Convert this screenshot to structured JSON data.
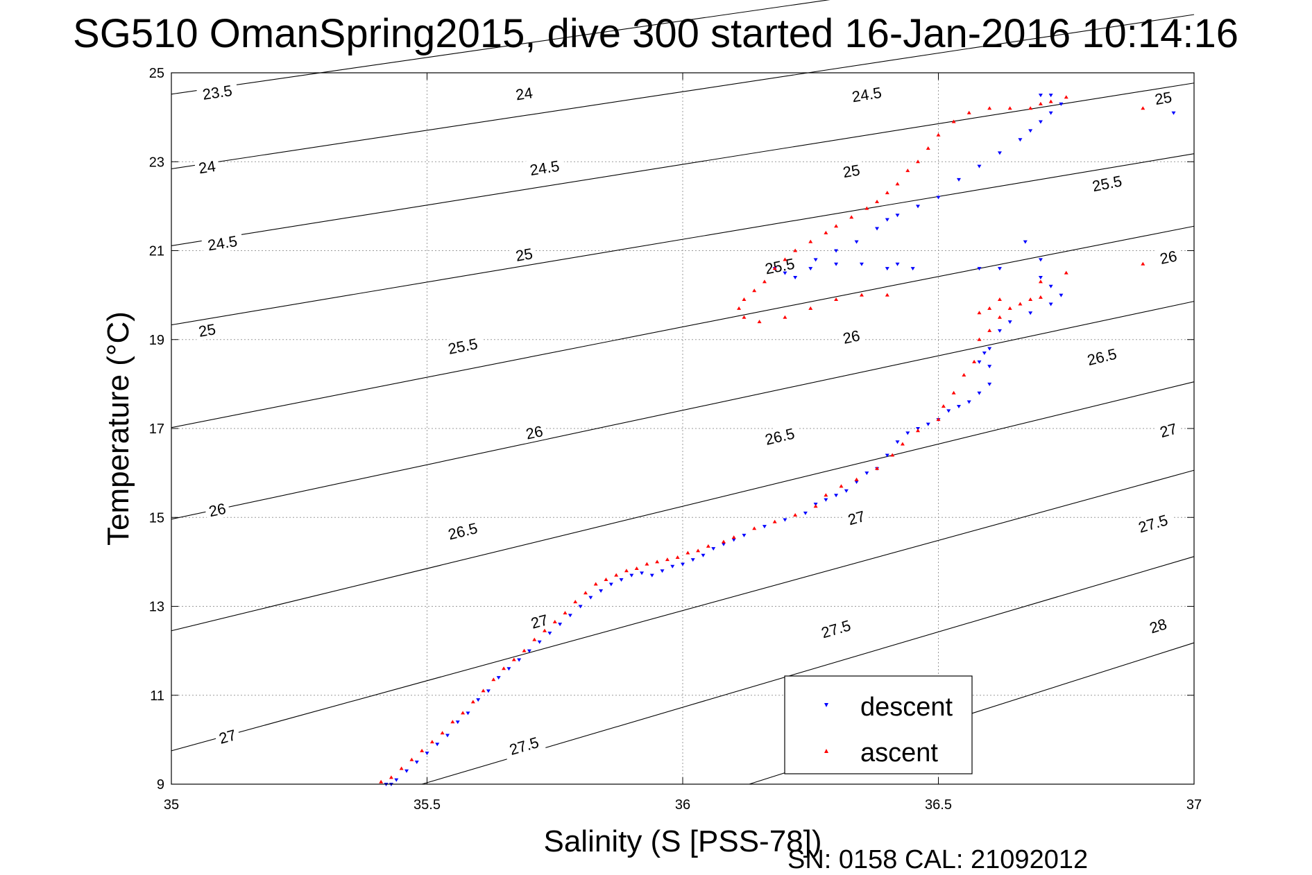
{
  "chart_data": {
    "type": "scatter",
    "title": "SG510 OmanSpring2015, dive 300 started 16-Jan-2016 10:14:16",
    "xlabel": "Salinity (S [PSS-78])",
    "ylabel": "Temperature (°C)",
    "xlim": [
      35,
      37
    ],
    "ylim": [
      9,
      25
    ],
    "x_ticks": [
      35,
      35.5,
      36,
      36.5,
      37
    ],
    "x_tick_labels": [
      "35",
      "35.5",
      "36",
      "36.5",
      "37"
    ],
    "y_ticks": [
      9,
      11,
      13,
      15,
      17,
      19,
      21,
      23,
      25
    ],
    "y_tick_labels": [
      "9",
      "11",
      "13",
      "15",
      "17",
      "19",
      "21",
      "23",
      "25"
    ],
    "grid": true,
    "legend_position": "bottom-right",
    "footer_note": "SN: 0158  CAL: 21092012",
    "colors": {
      "descent": "#0000ff",
      "ascent": "#ff0000",
      "contour": "#000000",
      "grid": "#9a9a9a"
    },
    "contours": [
      {
        "level": 23.5,
        "label": "23.5",
        "line": [
          [
            35,
            24.52
          ],
          [
            37,
            27.82
          ]
        ],
        "labels": [
          [
            35.09,
            24.55
          ]
        ]
      },
      {
        "level": 24,
        "label": "24",
        "line": [
          [
            35,
            22.84
          ],
          [
            37,
            26.31
          ]
        ],
        "labels": [
          [
            35.07,
            22.87
          ],
          [
            35.69,
            24.52
          ]
        ]
      },
      {
        "level": 24.5,
        "label": "24.5",
        "line": [
          [
            35,
            21.11
          ],
          [
            37,
            24.77
          ]
        ],
        "labels": [
          [
            35.1,
            21.16
          ],
          [
            35.73,
            22.85
          ],
          [
            36.36,
            24.5
          ]
        ]
      },
      {
        "level": 25,
        "label": "25",
        "line": [
          [
            35,
            19.33
          ],
          [
            37,
            23.18
          ]
        ],
        "labels": [
          [
            35.07,
            19.2
          ],
          [
            35.69,
            20.9
          ],
          [
            36.33,
            22.78
          ],
          [
            36.94,
            24.42
          ]
        ]
      },
      {
        "level": 25.5,
        "label": "25.5",
        "line": [
          [
            35,
            17.02
          ],
          [
            37,
            21.55
          ]
        ],
        "labels": [
          [
            35.57,
            18.84
          ],
          [
            36.19,
            20.64
          ],
          [
            36.83,
            22.5
          ]
        ]
      },
      {
        "level": 26,
        "label": "26",
        "line": [
          [
            35,
            14.96
          ],
          [
            37,
            19.86
          ]
        ],
        "labels": [
          [
            35.09,
            15.16
          ],
          [
            35.71,
            16.9
          ],
          [
            36.33,
            19.05
          ],
          [
            36.95,
            20.84
          ]
        ]
      },
      {
        "level": 26.5,
        "label": "26.5",
        "line": [
          [
            35,
            12.45
          ],
          [
            37,
            18.05
          ]
        ],
        "labels": [
          [
            35.57,
            14.68
          ],
          [
            36.19,
            16.81
          ],
          [
            36.82,
            18.6
          ]
        ]
      },
      {
        "level": 27,
        "label": "27",
        "line": [
          [
            35,
            9.75
          ],
          [
            37,
            16.06
          ]
        ],
        "labels": [
          [
            35.11,
            10.06
          ],
          [
            35.72,
            12.65
          ],
          [
            36.34,
            14.98
          ],
          [
            36.95,
            16.95
          ]
        ]
      },
      {
        "level": 27.5,
        "label": "27.5",
        "line": [
          [
            35.49,
            9
          ],
          [
            37,
            14.12
          ]
        ],
        "labels": [
          [
            35.69,
            9.85
          ],
          [
            36.3,
            12.48
          ],
          [
            36.92,
            14.85
          ]
        ]
      },
      {
        "level": 28,
        "label": "28",
        "line": [
          [
            36.13,
            9
          ],
          [
            37,
            12.18
          ]
        ],
        "labels": [
          [
            36.93,
            12.55
          ]
        ]
      }
    ],
    "series": [
      {
        "name": "descent",
        "marker": "triangle-down",
        "points": [
          [
            35.42,
            9.0
          ],
          [
            35.43,
            9.0
          ],
          [
            35.44,
            9.1
          ],
          [
            35.46,
            9.3
          ],
          [
            35.48,
            9.5
          ],
          [
            35.5,
            9.7
          ],
          [
            35.52,
            9.9
          ],
          [
            35.54,
            10.1
          ],
          [
            35.56,
            10.4
          ],
          [
            35.58,
            10.6
          ],
          [
            35.6,
            10.9
          ],
          [
            35.62,
            11.1
          ],
          [
            35.64,
            11.4
          ],
          [
            35.66,
            11.6
          ],
          [
            35.68,
            11.8
          ],
          [
            35.7,
            12.0
          ],
          [
            35.72,
            12.2
          ],
          [
            35.74,
            12.4
          ],
          [
            35.76,
            12.6
          ],
          [
            35.78,
            12.8
          ],
          [
            35.8,
            13.0
          ],
          [
            35.82,
            13.2
          ],
          [
            35.84,
            13.35
          ],
          [
            35.86,
            13.5
          ],
          [
            35.88,
            13.6
          ],
          [
            35.9,
            13.7
          ],
          [
            35.92,
            13.75
          ],
          [
            35.94,
            13.7
          ],
          [
            35.96,
            13.8
          ],
          [
            35.98,
            13.9
          ],
          [
            36.0,
            13.95
          ],
          [
            36.02,
            14.05
          ],
          [
            36.04,
            14.15
          ],
          [
            36.06,
            14.3
          ],
          [
            36.08,
            14.4
          ],
          [
            36.1,
            14.5
          ],
          [
            36.12,
            14.6
          ],
          [
            36.16,
            14.8
          ],
          [
            36.2,
            14.95
          ],
          [
            36.24,
            15.1
          ],
          [
            36.26,
            15.3
          ],
          [
            36.28,
            15.4
          ],
          [
            36.3,
            15.5
          ],
          [
            36.32,
            15.6
          ],
          [
            36.34,
            15.8
          ],
          [
            36.36,
            16.0
          ],
          [
            36.38,
            16.1
          ],
          [
            36.4,
            16.4
          ],
          [
            36.42,
            16.7
          ],
          [
            36.44,
            16.9
          ],
          [
            36.46,
            17.0
          ],
          [
            36.48,
            17.1
          ],
          [
            36.5,
            17.2
          ],
          [
            36.52,
            17.4
          ],
          [
            36.54,
            17.5
          ],
          [
            36.56,
            17.6
          ],
          [
            36.58,
            17.8
          ],
          [
            36.6,
            18.0
          ],
          [
            36.6,
            18.4
          ],
          [
            36.58,
            18.5
          ],
          [
            36.59,
            18.7
          ],
          [
            36.6,
            18.8
          ],
          [
            36.62,
            19.2
          ],
          [
            36.64,
            19.4
          ],
          [
            36.68,
            19.6
          ],
          [
            36.72,
            19.8
          ],
          [
            36.74,
            20.0
          ],
          [
            36.72,
            20.2
          ],
          [
            36.7,
            20.4
          ],
          [
            36.67,
            21.2
          ],
          [
            36.7,
            20.8
          ],
          [
            36.62,
            20.6
          ],
          [
            36.58,
            20.6
          ],
          [
            36.45,
            20.6
          ],
          [
            36.42,
            20.7
          ],
          [
            36.4,
            20.6
          ],
          [
            36.35,
            20.7
          ],
          [
            36.3,
            20.7
          ],
          [
            36.25,
            20.6
          ],
          [
            36.2,
            20.5
          ],
          [
            36.18,
            20.6
          ],
          [
            36.22,
            20.4
          ],
          [
            36.26,
            20.8
          ],
          [
            36.3,
            21.0
          ],
          [
            36.34,
            21.2
          ],
          [
            36.38,
            21.5
          ],
          [
            36.4,
            21.7
          ],
          [
            36.42,
            21.8
          ],
          [
            36.46,
            22.0
          ],
          [
            36.5,
            22.2
          ],
          [
            36.54,
            22.6
          ],
          [
            36.58,
            22.9
          ],
          [
            36.62,
            23.2
          ],
          [
            36.66,
            23.5
          ],
          [
            36.68,
            23.7
          ],
          [
            36.7,
            23.9
          ],
          [
            36.72,
            24.1
          ],
          [
            36.74,
            24.3
          ],
          [
            36.7,
            24.5
          ],
          [
            36.72,
            24.5
          ],
          [
            36.96,
            24.1
          ]
        ]
      },
      {
        "name": "ascent",
        "marker": "triangle-up",
        "points": [
          [
            35.41,
            9.05
          ],
          [
            35.43,
            9.15
          ],
          [
            35.45,
            9.35
          ],
          [
            35.47,
            9.55
          ],
          [
            35.49,
            9.75
          ],
          [
            35.51,
            9.95
          ],
          [
            35.53,
            10.15
          ],
          [
            35.55,
            10.4
          ],
          [
            35.57,
            10.6
          ],
          [
            35.59,
            10.85
          ],
          [
            35.61,
            11.1
          ],
          [
            35.63,
            11.35
          ],
          [
            35.65,
            11.6
          ],
          [
            35.67,
            11.8
          ],
          [
            35.69,
            12.0
          ],
          [
            35.71,
            12.25
          ],
          [
            35.73,
            12.45
          ],
          [
            35.75,
            12.65
          ],
          [
            35.77,
            12.85
          ],
          [
            35.79,
            13.1
          ],
          [
            35.81,
            13.3
          ],
          [
            35.83,
            13.5
          ],
          [
            35.85,
            13.6
          ],
          [
            35.87,
            13.7
          ],
          [
            35.89,
            13.8
          ],
          [
            35.91,
            13.85
          ],
          [
            35.93,
            13.95
          ],
          [
            35.95,
            14.0
          ],
          [
            35.97,
            14.05
          ],
          [
            35.99,
            14.1
          ],
          [
            36.01,
            14.2
          ],
          [
            36.03,
            14.25
          ],
          [
            36.05,
            14.35
          ],
          [
            36.08,
            14.45
          ],
          [
            36.1,
            14.55
          ],
          [
            36.14,
            14.75
          ],
          [
            36.18,
            14.9
          ],
          [
            36.22,
            15.05
          ],
          [
            36.26,
            15.25
          ],
          [
            36.28,
            15.5
          ],
          [
            36.31,
            15.7
          ],
          [
            36.34,
            15.85
          ],
          [
            36.38,
            16.1
          ],
          [
            36.41,
            16.4
          ],
          [
            36.43,
            16.65
          ],
          [
            36.46,
            16.95
          ],
          [
            36.5,
            17.2
          ],
          [
            36.51,
            17.5
          ],
          [
            36.53,
            17.8
          ],
          [
            36.55,
            18.2
          ],
          [
            36.57,
            18.5
          ],
          [
            36.58,
            19.0
          ],
          [
            36.6,
            19.2
          ],
          [
            36.62,
            19.5
          ],
          [
            36.64,
            19.7
          ],
          [
            36.66,
            19.8
          ],
          [
            36.68,
            19.9
          ],
          [
            36.7,
            19.95
          ],
          [
            36.6,
            19.7
          ],
          [
            36.62,
            19.9
          ],
          [
            36.58,
            19.6
          ],
          [
            36.7,
            20.3
          ],
          [
            36.75,
            20.5
          ],
          [
            36.9,
            20.7
          ],
          [
            36.4,
            20.0
          ],
          [
            36.35,
            20.0
          ],
          [
            36.3,
            19.9
          ],
          [
            36.25,
            19.7
          ],
          [
            36.2,
            19.5
          ],
          [
            36.15,
            19.4
          ],
          [
            36.12,
            19.5
          ],
          [
            36.11,
            19.7
          ],
          [
            36.12,
            19.9
          ],
          [
            36.14,
            20.1
          ],
          [
            36.16,
            20.3
          ],
          [
            36.18,
            20.6
          ],
          [
            36.2,
            20.8
          ],
          [
            36.22,
            21.0
          ],
          [
            36.25,
            21.2
          ],
          [
            36.28,
            21.4
          ],
          [
            36.3,
            21.55
          ],
          [
            36.33,
            21.75
          ],
          [
            36.36,
            21.95
          ],
          [
            36.38,
            22.1
          ],
          [
            36.4,
            22.3
          ],
          [
            36.42,
            22.5
          ],
          [
            36.44,
            22.8
          ],
          [
            36.46,
            23.0
          ],
          [
            36.48,
            23.3
          ],
          [
            36.5,
            23.6
          ],
          [
            36.53,
            23.9
          ],
          [
            36.56,
            24.1
          ],
          [
            36.6,
            24.2
          ],
          [
            36.64,
            24.2
          ],
          [
            36.68,
            24.2
          ],
          [
            36.7,
            24.3
          ],
          [
            36.72,
            24.35
          ],
          [
            36.75,
            24.45
          ],
          [
            36.9,
            24.2
          ]
        ]
      }
    ]
  }
}
